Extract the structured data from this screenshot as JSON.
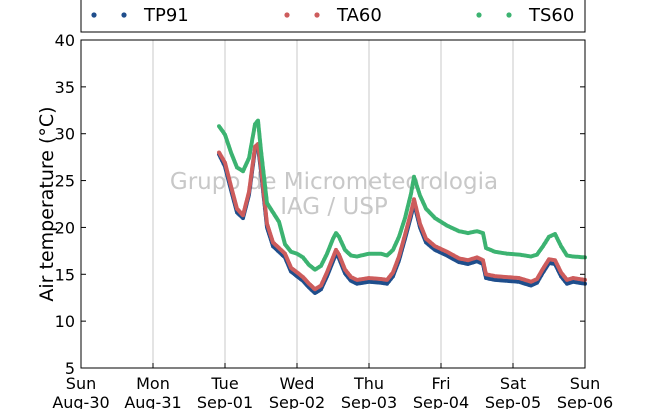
{
  "chart_data": {
    "type": "scatter",
    "title": "",
    "xlabel": "",
    "ylabel": "Air temperature (°C)",
    "ylim": [
      5,
      40
    ],
    "yticks": [
      5,
      10,
      15,
      20,
      25,
      30,
      35,
      40
    ],
    "xlim": [
      "2015-08-30",
      "2015-09-06"
    ],
    "x_ticks": [
      {
        "day": "Sun",
        "date": "Aug-30"
      },
      {
        "day": "Mon",
        "date": "Aug-31"
      },
      {
        "day": "Tue",
        "date": "Sep-01"
      },
      {
        "day": "Wed",
        "date": "Sep-02"
      },
      {
        "day": "Thu",
        "date": "Sep-03"
      },
      {
        "day": "Fri",
        "date": "Sep-04"
      },
      {
        "day": "Sat",
        "date": "Sep-05"
      },
      {
        "day": "Sun",
        "date": "Sep-06"
      }
    ],
    "grid": "vertical",
    "legend_position": "top",
    "watermark": [
      "Grupo de Micrometeorologia",
      "IAG / USP"
    ],
    "series": [
      {
        "name": "TP91",
        "color": "#1f4e8c",
        "points": [
          [
            "2015-08-31 22:00",
            27.8
          ],
          [
            "2015-09-01 00:00",
            26.5
          ],
          [
            "2015-09-01 02:00",
            24.0
          ],
          [
            "2015-09-01 04:00",
            21.6
          ],
          [
            "2015-09-01 06:00",
            21.0
          ],
          [
            "2015-09-01 08:00",
            23.5
          ],
          [
            "2015-09-01 10:00",
            28.3
          ],
          [
            "2015-09-01 11:00",
            28.6
          ],
          [
            "2015-09-01 12:00",
            26.0
          ],
          [
            "2015-09-01 14:00",
            20.0
          ],
          [
            "2015-09-01 16:00",
            18.0
          ],
          [
            "2015-09-01 18:00",
            17.4
          ],
          [
            "2015-09-01 20:00",
            16.8
          ],
          [
            "2015-09-01 22:00",
            15.3
          ],
          [
            "2015-09-02 00:00",
            14.8
          ],
          [
            "2015-09-02 02:00",
            14.3
          ],
          [
            "2015-09-02 04:00",
            13.6
          ],
          [
            "2015-09-02 06:00",
            13.0
          ],
          [
            "2015-09-02 08:00",
            13.4
          ],
          [
            "2015-09-02 10:00",
            14.8
          ],
          [
            "2015-09-02 12:00",
            16.4
          ],
          [
            "2015-09-02 13:00",
            17.2
          ],
          [
            "2015-09-02 14:00",
            16.7
          ],
          [
            "2015-09-02 16:00",
            15.1
          ],
          [
            "2015-09-02 18:00",
            14.3
          ],
          [
            "2015-09-02 20:00",
            14.0
          ],
          [
            "2015-09-03 00:00",
            14.2
          ],
          [
            "2015-09-03 04:00",
            14.1
          ],
          [
            "2015-09-03 06:00",
            14.0
          ],
          [
            "2015-09-03 08:00",
            14.8
          ],
          [
            "2015-09-03 10:00",
            16.5
          ],
          [
            "2015-09-03 12:00",
            18.8
          ],
          [
            "2015-09-03 14:00",
            21.2
          ],
          [
            "2015-09-03 15:00",
            22.6
          ],
          [
            "2015-09-03 17:00",
            20.0
          ],
          [
            "2015-09-03 19:00",
            18.4
          ],
          [
            "2015-09-03 22:00",
            17.6
          ],
          [
            "2015-09-04 02:00",
            17.0
          ],
          [
            "2015-09-04 06:00",
            16.3
          ],
          [
            "2015-09-04 09:00",
            16.1
          ],
          [
            "2015-09-04 12:00",
            16.4
          ],
          [
            "2015-09-04 14:00",
            16.1
          ],
          [
            "2015-09-04 15:00",
            14.6
          ],
          [
            "2015-09-04 18:00",
            14.4
          ],
          [
            "2015-09-04 22:00",
            14.3
          ],
          [
            "2015-09-05 02:00",
            14.2
          ],
          [
            "2015-09-05 06:00",
            13.8
          ],
          [
            "2015-09-05 08:00",
            14.1
          ],
          [
            "2015-09-05 10:00",
            15.2
          ],
          [
            "2015-09-05 12:00",
            16.2
          ],
          [
            "2015-09-05 14:00",
            16.1
          ],
          [
            "2015-09-05 16:00",
            14.8
          ],
          [
            "2015-09-05 18:00",
            14.0
          ],
          [
            "2015-09-05 20:00",
            14.2
          ],
          [
            "2015-09-06 00:00",
            14.0
          ]
        ]
      },
      {
        "name": "TA60",
        "color": "#cd5c5c",
        "points": [
          [
            "2015-08-31 22:00",
            28.0
          ],
          [
            "2015-09-01 00:00",
            26.9
          ],
          [
            "2015-09-01 02:00",
            24.4
          ],
          [
            "2015-09-01 04:00",
            22.0
          ],
          [
            "2015-09-01 06:00",
            21.3
          ],
          [
            "2015-09-01 08:00",
            23.8
          ],
          [
            "2015-09-01 10:00",
            28.6
          ],
          [
            "2015-09-01 11:00",
            28.9
          ],
          [
            "2015-09-01 12:00",
            26.4
          ],
          [
            "2015-09-01 14:00",
            20.4
          ],
          [
            "2015-09-01 16:00",
            18.4
          ],
          [
            "2015-09-01 18:00",
            17.8
          ],
          [
            "2015-09-01 20:00",
            17.2
          ],
          [
            "2015-09-01 22:00",
            15.7
          ],
          [
            "2015-09-02 00:00",
            15.2
          ],
          [
            "2015-09-02 02:00",
            14.7
          ],
          [
            "2015-09-02 04:00",
            14.0
          ],
          [
            "2015-09-02 06:00",
            13.4
          ],
          [
            "2015-09-02 08:00",
            13.8
          ],
          [
            "2015-09-02 10:00",
            15.2
          ],
          [
            "2015-09-02 12:00",
            16.8
          ],
          [
            "2015-09-02 13:00",
            17.6
          ],
          [
            "2015-09-02 14:00",
            17.1
          ],
          [
            "2015-09-02 16:00",
            15.5
          ],
          [
            "2015-09-02 18:00",
            14.7
          ],
          [
            "2015-09-02 20:00",
            14.4
          ],
          [
            "2015-09-03 00:00",
            14.6
          ],
          [
            "2015-09-03 04:00",
            14.5
          ],
          [
            "2015-09-03 06:00",
            14.4
          ],
          [
            "2015-09-03 08:00",
            15.2
          ],
          [
            "2015-09-03 10:00",
            16.9
          ],
          [
            "2015-09-03 12:00",
            19.2
          ],
          [
            "2015-09-03 14:00",
            21.6
          ],
          [
            "2015-09-03 15:00",
            23.0
          ],
          [
            "2015-09-03 17:00",
            20.4
          ],
          [
            "2015-09-03 19:00",
            18.8
          ],
          [
            "2015-09-03 22:00",
            18.0
          ],
          [
            "2015-09-04 02:00",
            17.4
          ],
          [
            "2015-09-04 06:00",
            16.7
          ],
          [
            "2015-09-04 09:00",
            16.5
          ],
          [
            "2015-09-04 12:00",
            16.8
          ],
          [
            "2015-09-04 14:00",
            16.5
          ],
          [
            "2015-09-04 15:00",
            15.0
          ],
          [
            "2015-09-04 18:00",
            14.8
          ],
          [
            "2015-09-04 22:00",
            14.7
          ],
          [
            "2015-09-05 02:00",
            14.6
          ],
          [
            "2015-09-05 06:00",
            14.2
          ],
          [
            "2015-09-05 08:00",
            14.5
          ],
          [
            "2015-09-05 10:00",
            15.6
          ],
          [
            "2015-09-05 12:00",
            16.6
          ],
          [
            "2015-09-05 14:00",
            16.5
          ],
          [
            "2015-09-05 16:00",
            15.2
          ],
          [
            "2015-09-05 18:00",
            14.4
          ],
          [
            "2015-09-05 20:00",
            14.6
          ],
          [
            "2015-09-06 00:00",
            14.4
          ]
        ]
      },
      {
        "name": "TS60",
        "color": "#3cb371",
        "points": [
          [
            "2015-08-31 22:00",
            30.8
          ],
          [
            "2015-09-01 00:00",
            29.9
          ],
          [
            "2015-09-01 02:00",
            28.0
          ],
          [
            "2015-09-01 04:00",
            26.4
          ],
          [
            "2015-09-01 06:00",
            26.0
          ],
          [
            "2015-09-01 08:00",
            27.4
          ],
          [
            "2015-09-01 10:00",
            31.0
          ],
          [
            "2015-09-01 11:00",
            31.4
          ],
          [
            "2015-09-01 12:00",
            28.2
          ],
          [
            "2015-09-01 14:00",
            22.6
          ],
          [
            "2015-09-01 16:00",
            21.6
          ],
          [
            "2015-09-01 18:00",
            20.6
          ],
          [
            "2015-09-01 20:00",
            18.2
          ],
          [
            "2015-09-01 22:00",
            17.4
          ],
          [
            "2015-09-02 00:00",
            17.2
          ],
          [
            "2015-09-02 02:00",
            16.8
          ],
          [
            "2015-09-02 04:00",
            16.0
          ],
          [
            "2015-09-02 06:00",
            15.5
          ],
          [
            "2015-09-02 08:00",
            15.9
          ],
          [
            "2015-09-02 10:00",
            17.2
          ],
          [
            "2015-09-02 12:00",
            18.8
          ],
          [
            "2015-09-02 13:00",
            19.4
          ],
          [
            "2015-09-02 14:00",
            19.0
          ],
          [
            "2015-09-02 16:00",
            17.6
          ],
          [
            "2015-09-02 18:00",
            17.0
          ],
          [
            "2015-09-02 20:00",
            16.9
          ],
          [
            "2015-09-03 00:00",
            17.2
          ],
          [
            "2015-09-03 04:00",
            17.2
          ],
          [
            "2015-09-03 06:00",
            17.0
          ],
          [
            "2015-09-03 08:00",
            17.6
          ],
          [
            "2015-09-03 10:00",
            19.0
          ],
          [
            "2015-09-03 12:00",
            21.0
          ],
          [
            "2015-09-03 14:00",
            23.6
          ],
          [
            "2015-09-03 15:00",
            25.4
          ],
          [
            "2015-09-03 17:00",
            23.4
          ],
          [
            "2015-09-03 19:00",
            22.0
          ],
          [
            "2015-09-03 22:00",
            21.0
          ],
          [
            "2015-09-04 02:00",
            20.2
          ],
          [
            "2015-09-04 06:00",
            19.6
          ],
          [
            "2015-09-04 09:00",
            19.4
          ],
          [
            "2015-09-04 12:00",
            19.6
          ],
          [
            "2015-09-04 14:00",
            19.4
          ],
          [
            "2015-09-04 15:00",
            17.8
          ],
          [
            "2015-09-04 18:00",
            17.4
          ],
          [
            "2015-09-04 22:00",
            17.2
          ],
          [
            "2015-09-05 02:00",
            17.1
          ],
          [
            "2015-09-05 06:00",
            16.9
          ],
          [
            "2015-09-05 08:00",
            17.1
          ],
          [
            "2015-09-05 10:00",
            18.0
          ],
          [
            "2015-09-05 12:00",
            19.0
          ],
          [
            "2015-09-05 14:00",
            19.3
          ],
          [
            "2015-09-05 16:00",
            18.0
          ],
          [
            "2015-09-05 18:00",
            17.0
          ],
          [
            "2015-09-05 20:00",
            16.9
          ],
          [
            "2015-09-06 00:00",
            16.8
          ]
        ]
      }
    ]
  }
}
